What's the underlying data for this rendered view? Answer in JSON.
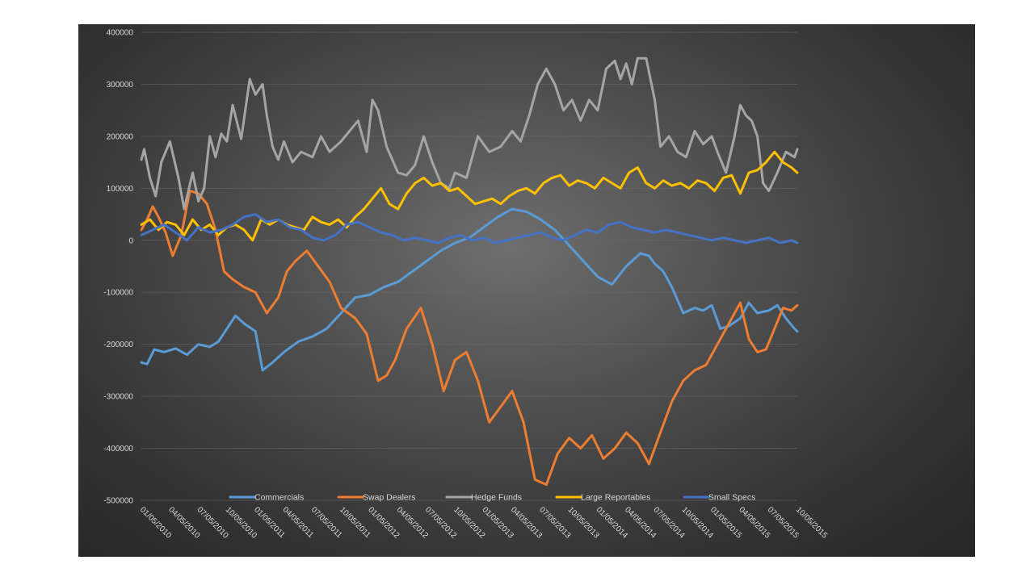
{
  "chart_data": {
    "type": "line",
    "title": "",
    "xlabel": "",
    "ylabel": "",
    "ylim": [
      -500000,
      400000
    ],
    "yticks": [
      400000,
      300000,
      200000,
      100000,
      0,
      -100000,
      -200000,
      -300000,
      -400000,
      -500000
    ],
    "grid": true,
    "legend": "bottom",
    "x_dates": [
      "01/05/2010",
      "04/05/2010",
      "07/05/2010",
      "10/05/2010",
      "01/05/2011",
      "04/05/2011",
      "07/05/2011",
      "10/05/2011",
      "01/05/2012",
      "04/05/2012",
      "07/05/2012",
      "10/05/2012",
      "01/05/2013",
      "04/05/2013",
      "07/05/2013",
      "10/05/2013",
      "01/05/2014",
      "04/05/2014",
      "07/05/2014",
      "10/05/2014",
      "01/05/2015",
      "04/05/2015",
      "07/05/2015",
      "10/05/2015"
    ],
    "x_range": [
      0,
      23
    ],
    "series": [
      {
        "name": "Commercials",
        "color": "#5b9bd5",
        "x": [
          0,
          0.2,
          0.45,
          0.8,
          1.2,
          1.6,
          2.0,
          2.4,
          2.7,
          3.0,
          3.3,
          3.6,
          4.0,
          4.25,
          4.6,
          5.0,
          5.5,
          6.0,
          6.5,
          7.0,
          7.5,
          8.0,
          8.5,
          9.0,
          9.5,
          10.0,
          10.5,
          11.0,
          11.5,
          12.0,
          12.5,
          13.0,
          13.5,
          14.0,
          14.5,
          15.0,
          15.5,
          16.0,
          16.5,
          17.0,
          17.5,
          17.8,
          18.0,
          18.3,
          18.6,
          19.0,
          19.4,
          19.7,
          20.0,
          20.3,
          20.6,
          21.0,
          21.3,
          21.6,
          22.0,
          22.3,
          22.6,
          22.9,
          23.0
        ],
        "values": [
          -235000,
          -238000,
          -210000,
          -215000,
          -208000,
          -220000,
          -200000,
          -205000,
          -195000,
          -170000,
          -145000,
          -160000,
          -175000,
          -250000,
          -235000,
          -215000,
          -195000,
          -185000,
          -170000,
          -140000,
          -110000,
          -105000,
          -90000,
          -80000,
          -60000,
          -40000,
          -20000,
          -5000,
          5000,
          25000,
          45000,
          60000,
          55000,
          40000,
          20000,
          -10000,
          -40000,
          -70000,
          -85000,
          -50000,
          -25000,
          -30000,
          -45000,
          -60000,
          -90000,
          -140000,
          -130000,
          -135000,
          -125000,
          -170000,
          -165000,
          -150000,
          -120000,
          -140000,
          -135000,
          -125000,
          -150000,
          -170000,
          -175000
        ]
      },
      {
        "name": "Swap Dealers",
        "color": "#ed7d31",
        "x": [
          0,
          0.2,
          0.4,
          0.6,
          0.85,
          1.1,
          1.4,
          1.7,
          2.0,
          2.3,
          2.6,
          2.9,
          3.2,
          3.6,
          4.0,
          4.4,
          4.8,
          5.1,
          5.4,
          5.8,
          6.2,
          6.6,
          7.0,
          7.5,
          7.9,
          8.3,
          8.6,
          8.9,
          9.3,
          9.8,
          10.2,
          10.6,
          11.0,
          11.4,
          11.8,
          12.2,
          12.6,
          13.0,
          13.4,
          13.8,
          14.2,
          14.6,
          15.0,
          15.4,
          15.8,
          16.2,
          16.6,
          17.0,
          17.4,
          17.8,
          18.2,
          18.6,
          19.0,
          19.4,
          19.8,
          20.2,
          20.6,
          21.0,
          21.3,
          21.6,
          21.9,
          22.2,
          22.5,
          22.8,
          23.0
        ],
        "values": [
          20000,
          40000,
          65000,
          45000,
          15000,
          -30000,
          10000,
          95000,
          90000,
          70000,
          20000,
          -60000,
          -75000,
          -90000,
          -100000,
          -140000,
          -110000,
          -60000,
          -40000,
          -20000,
          -50000,
          -80000,
          -130000,
          -150000,
          -180000,
          -270000,
          -260000,
          -230000,
          -170000,
          -130000,
          -200000,
          -290000,
          -230000,
          -215000,
          -270000,
          -350000,
          -320000,
          -290000,
          -350000,
          -460000,
          -470000,
          -410000,
          -380000,
          -400000,
          -375000,
          -420000,
          -400000,
          -370000,
          -390000,
          -430000,
          -370000,
          -310000,
          -270000,
          -250000,
          -240000,
          -200000,
          -160000,
          -120000,
          -190000,
          -215000,
          -210000,
          -170000,
          -130000,
          -135000,
          -125000
        ]
      },
      {
        "name": "Hedge Funds",
        "color": "#a5a5a5",
        "x": [
          0,
          0.1,
          0.3,
          0.5,
          0.7,
          1.0,
          1.3,
          1.5,
          1.8,
          2.0,
          2.2,
          2.4,
          2.6,
          2.8,
          3.0,
          3.2,
          3.5,
          3.8,
          4.0,
          4.25,
          4.4,
          4.6,
          4.8,
          5.0,
          5.3,
          5.6,
          6.0,
          6.3,
          6.6,
          7.0,
          7.3,
          7.6,
          7.9,
          8.1,
          8.3,
          8.6,
          9.0,
          9.3,
          9.6,
          9.9,
          10.2,
          10.5,
          10.8,
          11.0,
          11.4,
          11.8,
          12.2,
          12.6,
          13.0,
          13.3,
          13.6,
          13.9,
          14.2,
          14.5,
          14.8,
          15.1,
          15.4,
          15.7,
          16.0,
          16.3,
          16.6,
          16.8,
          17.0,
          17.2,
          17.4,
          17.7,
          18.0,
          18.2,
          18.5,
          18.8,
          19.1,
          19.4,
          19.7,
          20.0,
          20.2,
          20.5,
          20.8,
          21.0,
          21.2,
          21.4,
          21.6,
          21.8,
          22.0,
          22.3,
          22.6,
          22.9,
          23.0
        ],
        "values": [
          155000,
          175000,
          120000,
          85000,
          150000,
          190000,
          120000,
          60000,
          130000,
          75000,
          100000,
          200000,
          160000,
          205000,
          190000,
          260000,
          195000,
          310000,
          280000,
          300000,
          240000,
          180000,
          155000,
          190000,
          150000,
          170000,
          160000,
          200000,
          170000,
          190000,
          210000,
          230000,
          170000,
          270000,
          250000,
          180000,
          130000,
          125000,
          145000,
          200000,
          150000,
          110000,
          100000,
          130000,
          120000,
          200000,
          170000,
          180000,
          210000,
          190000,
          240000,
          300000,
          330000,
          300000,
          250000,
          270000,
          230000,
          270000,
          250000,
          330000,
          345000,
          310000,
          340000,
          300000,
          350000,
          350000,
          270000,
          180000,
          200000,
          170000,
          160000,
          210000,
          185000,
          200000,
          170000,
          130000,
          200000,
          260000,
          240000,
          230000,
          200000,
          110000,
          95000,
          130000,
          170000,
          160000,
          175000
        ]
      },
      {
        "name": "Large Reportables",
        "color": "#ffc000",
        "x": [
          0,
          0.3,
          0.6,
          0.9,
          1.2,
          1.5,
          1.8,
          2.1,
          2.4,
          2.7,
          3.0,
          3.3,
          3.6,
          3.9,
          4.2,
          4.5,
          4.8,
          5.1,
          5.4,
          5.7,
          6.0,
          6.3,
          6.6,
          6.9,
          7.2,
          7.5,
          7.8,
          8.1,
          8.4,
          8.7,
          9.0,
          9.3,
          9.6,
          9.9,
          10.2,
          10.5,
          10.8,
          11.1,
          11.4,
          11.7,
          12.0,
          12.3,
          12.6,
          12.9,
          13.2,
          13.5,
          13.8,
          14.1,
          14.4,
          14.7,
          15.0,
          15.3,
          15.6,
          15.9,
          16.2,
          16.5,
          16.8,
          17.1,
          17.4,
          17.7,
          18.0,
          18.3,
          18.6,
          18.9,
          19.2,
          19.5,
          19.8,
          20.1,
          20.4,
          20.7,
          21.0,
          21.3,
          21.6,
          21.9,
          22.2,
          22.5,
          22.8,
          23.0
        ],
        "values": [
          30000,
          40000,
          20000,
          35000,
          30000,
          10000,
          40000,
          20000,
          30000,
          10000,
          25000,
          30000,
          20000,
          0,
          40000,
          30000,
          40000,
          30000,
          25000,
          20000,
          45000,
          35000,
          30000,
          40000,
          25000,
          45000,
          60000,
          80000,
          100000,
          70000,
          60000,
          90000,
          110000,
          120000,
          105000,
          110000,
          95000,
          100000,
          85000,
          70000,
          75000,
          80000,
          70000,
          85000,
          95000,
          100000,
          90000,
          110000,
          120000,
          125000,
          105000,
          115000,
          110000,
          100000,
          120000,
          110000,
          100000,
          130000,
          140000,
          110000,
          100000,
          115000,
          105000,
          110000,
          100000,
          115000,
          110000,
          95000,
          120000,
          125000,
          90000,
          130000,
          135000,
          150000,
          170000,
          150000,
          140000,
          130000
        ]
      },
      {
        "name": "Small Specs",
        "color": "#4472c4",
        "x": [
          0,
          0.4,
          0.8,
          1.2,
          1.6,
          2.0,
          2.4,
          2.8,
          3.2,
          3.6,
          4.0,
          4.4,
          4.8,
          5.2,
          5.6,
          6.0,
          6.4,
          6.8,
          7.2,
          7.6,
          8.0,
          8.4,
          8.8,
          9.2,
          9.6,
          10.0,
          10.4,
          10.8,
          11.2,
          11.6,
          12.0,
          12.4,
          12.8,
          13.2,
          13.6,
          14.0,
          14.4,
          14.8,
          15.2,
          15.6,
          16.0,
          16.4,
          16.8,
          17.2,
          17.6,
          18.0,
          18.4,
          18.8,
          19.2,
          19.6,
          20.0,
          20.4,
          20.8,
          21.2,
          21.6,
          22.0,
          22.4,
          22.8,
          23.0
        ],
        "values": [
          10000,
          20000,
          30000,
          15000,
          0,
          25000,
          15000,
          20000,
          30000,
          45000,
          50000,
          35000,
          40000,
          25000,
          20000,
          5000,
          0,
          10000,
          30000,
          35000,
          25000,
          15000,
          10000,
          0,
          5000,
          0,
          -5000,
          5000,
          10000,
          0,
          5000,
          -5000,
          0,
          5000,
          10000,
          15000,
          5000,
          0,
          10000,
          20000,
          15000,
          30000,
          35000,
          25000,
          20000,
          15000,
          20000,
          15000,
          10000,
          5000,
          0,
          5000,
          0,
          -5000,
          0,
          5000,
          -5000,
          0,
          -5000
        ]
      }
    ]
  }
}
